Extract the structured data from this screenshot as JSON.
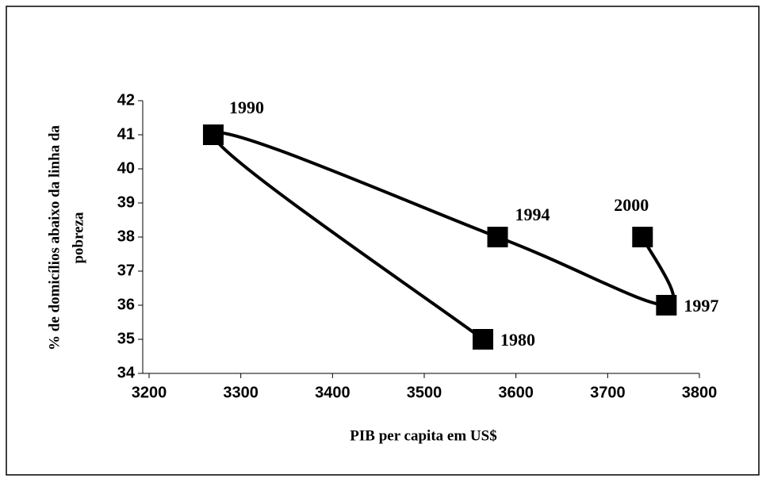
{
  "chart_data": {
    "type": "line",
    "xlabel": "PIB per capita  em US$",
    "ylabel": [
      "% de domicílios abaixo da linha da",
      "pobreza"
    ],
    "x": [
      3564,
      3270,
      3580,
      3764,
      3738
    ],
    "values": [
      35,
      41,
      38,
      36,
      38
    ],
    "point_labels": [
      "1980",
      "1990",
      "1994",
      "1997",
      "2000"
    ],
    "color": "#000000",
    "xlim": [
      3200,
      3800
    ],
    "xticks": [
      3200,
      3300,
      3400,
      3500,
      3600,
      3700,
      3800
    ],
    "ylim": [
      34,
      42
    ],
    "yticks": [
      34,
      35,
      36,
      37,
      38,
      39,
      40,
      41,
      42
    ]
  }
}
